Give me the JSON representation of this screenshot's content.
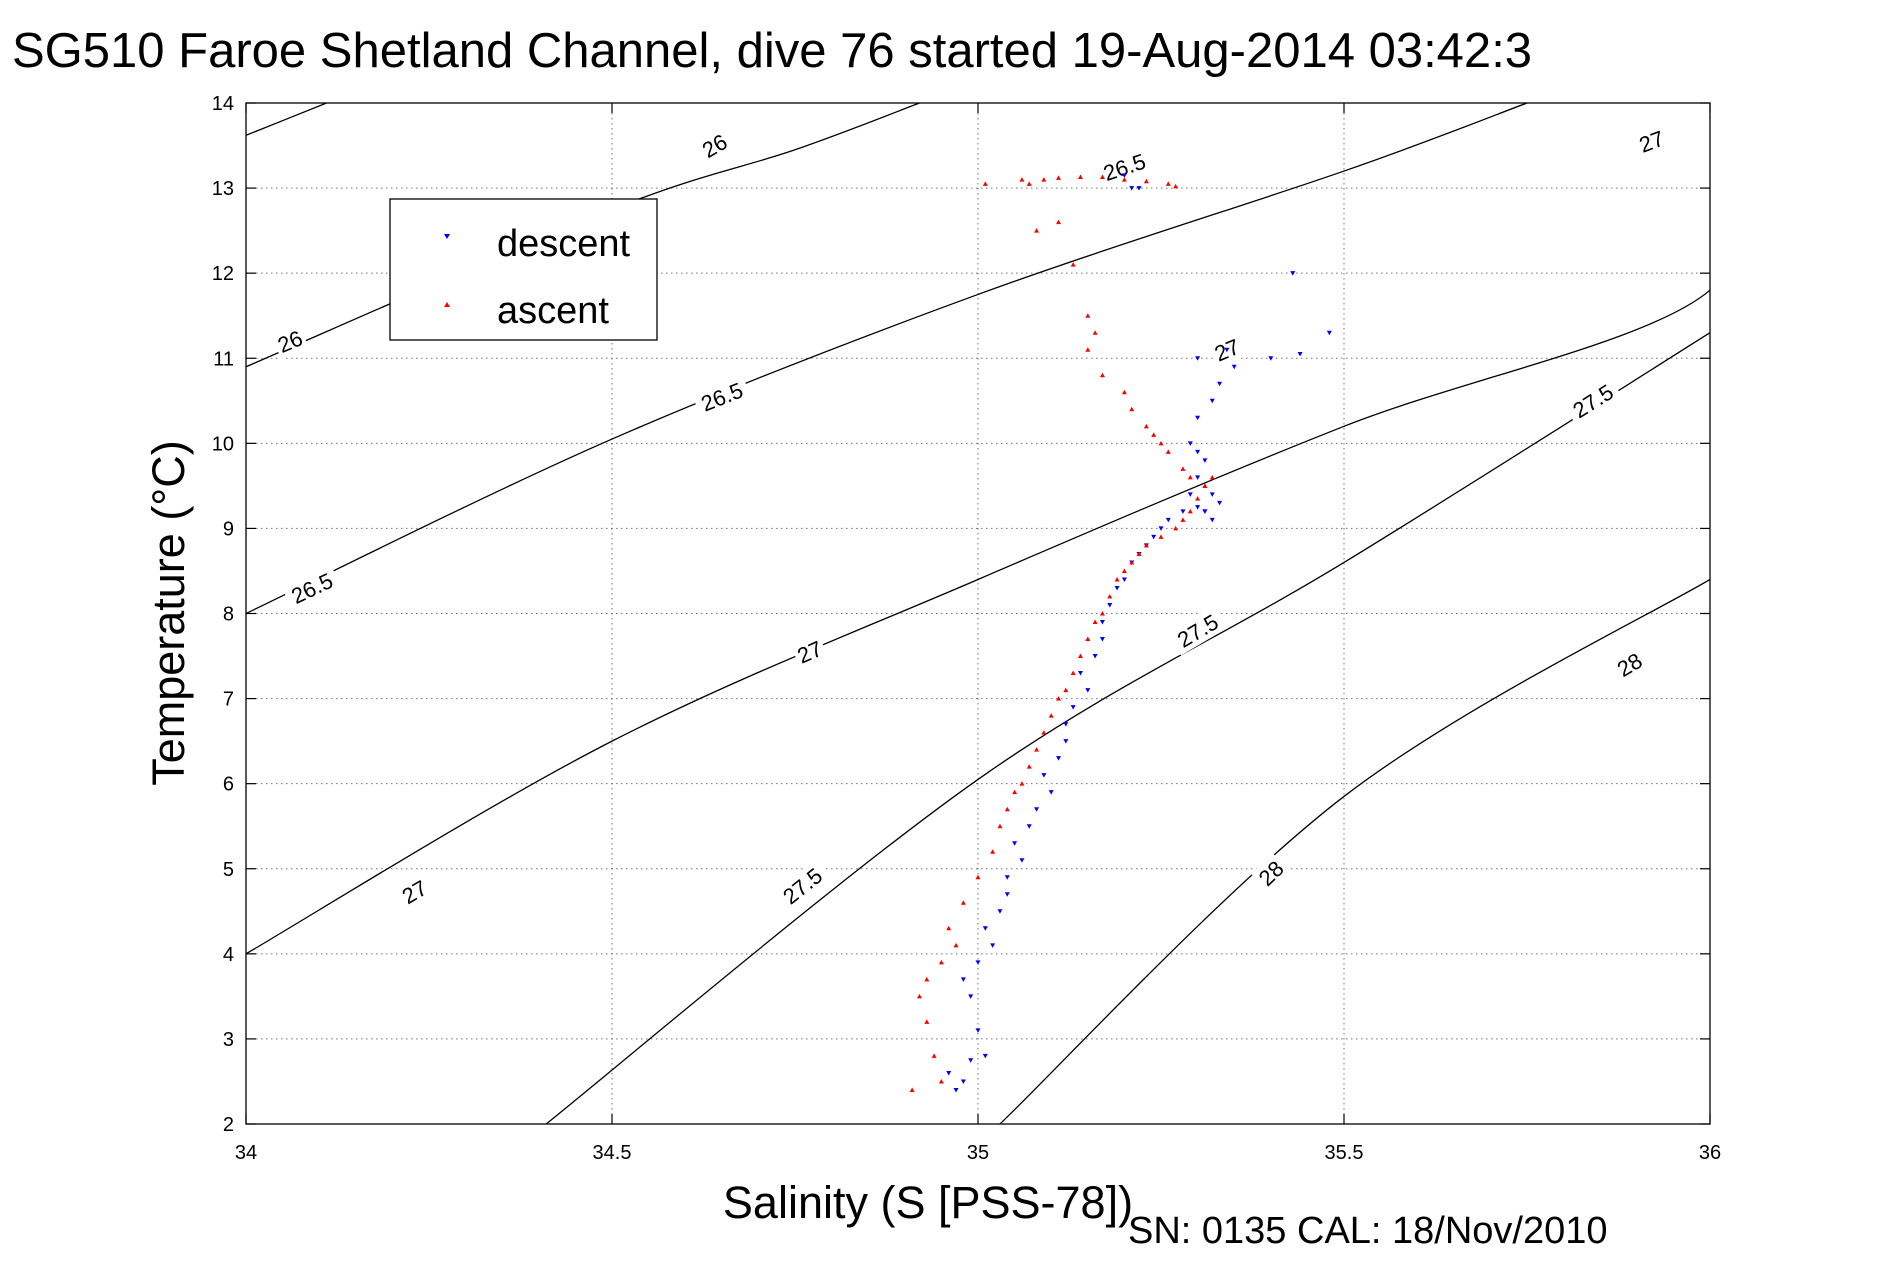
{
  "title": "SG510 Faroe Shetland Channel, dive 76 started 19-Aug-2014 03:42:3",
  "footer": "SN: 0135  CAL: 18/Nov/2010",
  "chart_data": {
    "type": "scatter",
    "title": "SG510 Faroe Shetland Channel, dive 76 started 19-Aug-2014 03:42:3",
    "xlabel": "Salinity (S [PSS-78])",
    "ylabel": "Temperature (°C)",
    "xlim": [
      34,
      36
    ],
    "ylim": [
      2,
      14
    ],
    "xticks": [
      34,
      34.5,
      35,
      35.5,
      36
    ],
    "yticks": [
      2,
      3,
      4,
      5,
      6,
      7,
      8,
      9,
      10,
      11,
      12,
      13,
      14
    ],
    "xtick_labels": [
      "34",
      "34.5",
      "35",
      "35.5",
      "36"
    ],
    "ytick_labels": [
      "2",
      "3",
      "4",
      "5",
      "6",
      "7",
      "8",
      "9",
      "10",
      "11",
      "12",
      "13",
      "14"
    ],
    "grid": true,
    "legend": "top-left",
    "contours": [
      {
        "label": "26",
        "points": [
          [
            34.0,
            13.62
          ],
          [
            34.11,
            14.0
          ]
        ],
        "labels_at": [
          [
            34.64,
            13.5
          ]
        ]
      },
      {
        "label": "26",
        "points": [
          [
            34.0,
            10.9
          ],
          [
            34.5,
            12.75
          ],
          [
            34.75,
            13.45
          ],
          [
            34.92,
            14.0
          ]
        ],
        "labels_at": [
          [
            34.06,
            11.2
          ]
        ]
      },
      {
        "label": "26.5",
        "points": [
          [
            34.0,
            8.0
          ],
          [
            34.5,
            10.05
          ],
          [
            35.0,
            11.75
          ],
          [
            35.5,
            13.2
          ],
          [
            35.75,
            14.0
          ]
        ],
        "labels_at": [
          [
            34.09,
            8.3
          ],
          [
            34.65,
            10.55
          ],
          [
            35.2,
            13.25
          ]
        ]
      },
      {
        "label": "27",
        "points": [
          [
            34.0,
            4.0
          ],
          [
            34.5,
            6.5
          ],
          [
            35.0,
            8.4
          ],
          [
            35.5,
            10.2
          ],
          [
            36.0,
            11.8
          ],
          [
            36.0,
            13.85
          ]
        ],
        "labels_at": [
          [
            34.23,
            4.73
          ],
          [
            34.77,
            7.55
          ],
          [
            35.34,
            11.1
          ],
          [
            35.92,
            13.55
          ]
        ]
      },
      {
        "label": "27.5",
        "points": [
          [
            34.41,
            2.0
          ],
          [
            35.0,
            6.05
          ],
          [
            35.5,
            8.6
          ],
          [
            36.0,
            11.3
          ]
        ],
        "labels_at": [
          [
            34.76,
            4.8
          ],
          [
            35.3,
            7.8
          ],
          [
            35.84,
            10.5
          ]
        ]
      },
      {
        "label": "28",
        "points": [
          [
            35.03,
            2.0
          ],
          [
            35.5,
            5.85
          ],
          [
            36.0,
            8.4
          ]
        ],
        "labels_at": [
          [
            35.4,
            4.95
          ],
          [
            35.89,
            7.4
          ]
        ]
      }
    ],
    "series": [
      {
        "name": "descent",
        "color": "#0000ff",
        "marker": "triangle-down",
        "x": [
          34.97,
          34.98,
          34.96,
          34.99,
          35.01,
          35.0,
          34.99,
          34.98,
          35.0,
          35.02,
          35.01,
          35.03,
          35.04,
          35.04,
          35.06,
          35.05,
          35.07,
          35.08,
          35.1,
          35.09,
          35.11,
          35.12,
          35.12,
          35.13,
          35.15,
          35.14,
          35.16,
          35.17,
          35.17,
          35.18,
          35.19,
          35.2,
          35.21,
          35.22,
          35.23,
          35.24,
          35.25,
          35.26,
          35.28,
          35.3,
          35.31,
          35.32,
          35.33,
          35.32,
          35.31,
          35.29,
          35.3,
          35.31,
          35.3,
          35.29,
          35.3,
          35.32,
          35.33,
          35.35,
          35.3,
          35.34,
          35.4,
          35.44,
          35.48,
          35.43,
          35.22,
          35.2,
          35.21
        ],
        "y": [
          2.4,
          2.5,
          2.6,
          2.75,
          2.8,
          3.1,
          3.5,
          3.7,
          3.9,
          4.1,
          4.3,
          4.5,
          4.7,
          4.9,
          5.1,
          5.3,
          5.5,
          5.7,
          5.9,
          6.1,
          6.3,
          6.5,
          6.7,
          6.9,
          7.1,
          7.3,
          7.5,
          7.7,
          7.9,
          8.1,
          8.3,
          8.4,
          8.6,
          8.7,
          8.8,
          8.9,
          9.0,
          9.1,
          9.2,
          9.25,
          9.2,
          9.1,
          9.3,
          9.4,
          9.2,
          9.4,
          9.6,
          9.8,
          9.9,
          10.0,
          10.3,
          10.5,
          10.7,
          10.9,
          11.0,
          11.1,
          11.0,
          11.05,
          11.3,
          12.0,
          13.0,
          13.15,
          13.0
        ]
      },
      {
        "name": "ascent",
        "color": "#ff0000",
        "marker": "triangle-up",
        "x": [
          34.91,
          34.95,
          34.94,
          34.93,
          34.92,
          34.93,
          34.95,
          34.97,
          34.96,
          34.98,
          35.0,
          35.02,
          35.03,
          35.04,
          35.05,
          35.06,
          35.07,
          35.08,
          35.09,
          35.1,
          35.11,
          35.12,
          35.13,
          35.14,
          35.15,
          35.16,
          35.17,
          35.18,
          35.19,
          35.2,
          35.21,
          35.22,
          35.23,
          35.25,
          35.27,
          35.28,
          35.29,
          35.3,
          35.31,
          35.32,
          35.31,
          35.29,
          35.28,
          35.26,
          35.25,
          35.24,
          35.23,
          35.21,
          35.2,
          35.17,
          35.15,
          35.16,
          35.15,
          35.13,
          35.11,
          35.08,
          35.07,
          35.01,
          35.06,
          35.09,
          35.11,
          35.14,
          35.17,
          35.2,
          35.23,
          35.26,
          35.27
        ],
        "y": [
          2.4,
          2.5,
          2.8,
          3.2,
          3.5,
          3.7,
          3.9,
          4.1,
          4.3,
          4.6,
          4.9,
          5.2,
          5.5,
          5.7,
          5.9,
          6.0,
          6.2,
          6.4,
          6.6,
          6.8,
          7.0,
          7.1,
          7.3,
          7.5,
          7.7,
          7.9,
          8.0,
          8.2,
          8.4,
          8.5,
          8.6,
          8.7,
          8.8,
          8.9,
          9.0,
          9.1,
          9.2,
          9.35,
          9.5,
          9.6,
          9.5,
          9.6,
          9.7,
          9.9,
          10.0,
          10.1,
          10.2,
          10.4,
          10.6,
          10.8,
          11.1,
          11.3,
          11.5,
          12.1,
          12.6,
          12.5,
          13.05,
          13.05,
          13.1,
          13.1,
          13.12,
          13.13,
          13.13,
          13.1,
          13.08,
          13.05,
          13.02
        ]
      }
    ]
  }
}
